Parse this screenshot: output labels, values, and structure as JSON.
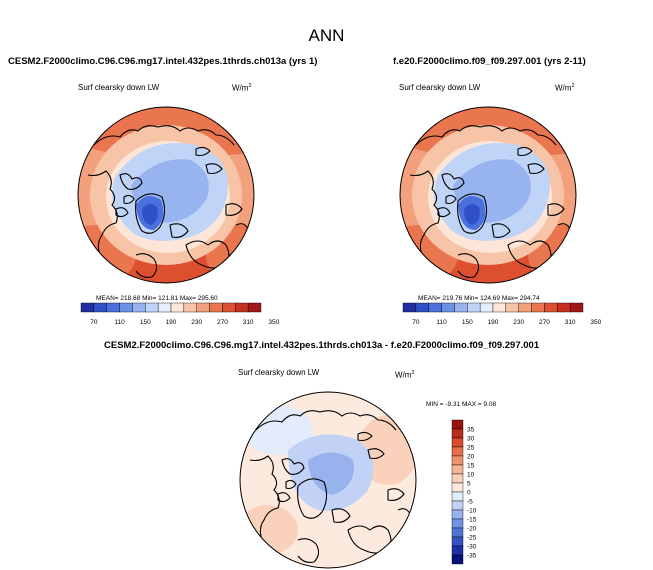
{
  "figure": {
    "title": "ANN"
  },
  "panels": [
    {
      "case_title": "CESM2.F2000climo.C96.C96.mg17.intel.432pes.1thrds.ch013a (yrs 1)",
      "variable": "Surf clearsky down LW",
      "units_base": "W/m",
      "units_exp": "2",
      "stats": "MEAN= 218.68  Min= 121.81  Max= 295.60",
      "projection": "north-polar-stereographic",
      "palette": [
        "#2030a0",
        "#3050c8",
        "#4a70dd",
        "#6c92e8",
        "#98b4f0",
        "#c0d4f7",
        "#e6eefc",
        "#fde6d8",
        "#f8c4a8",
        "#f3a07c",
        "#ea7650",
        "#dc5030",
        "#c63020",
        "#a01818"
      ]
    },
    {
      "case_title": "f.e20.F2000climo.f09_f09.297.001 (yrs 2-11)",
      "variable": "Surf clearsky down LW",
      "units_base": "W/m",
      "units_exp": "2",
      "stats": "MEAN= 219.76  Min= 124.69  Max= 294.74",
      "projection": "north-polar-stereographic",
      "palette": [
        "#2030a0",
        "#3050c8",
        "#4a70dd",
        "#6c92e8",
        "#98b4f0",
        "#c0d4f7",
        "#e6eefc",
        "#fde6d8",
        "#f8c4a8",
        "#f3a07c",
        "#ea7650",
        "#dc5030",
        "#c63020",
        "#a01818"
      ]
    },
    {
      "case_title": "CESM2.F2000climo.C96.C96.mg17.intel.432pes.1thrds.ch013a - f.e20.F2000climo.f09_f09.297.001",
      "variable": "Surf clearsky down LW",
      "units_base": "W/m",
      "units_exp": "2",
      "stats": "MIN =  -9.31 MAX =    9.08",
      "projection": "north-polar-stereographic",
      "palette": [
        "#08107a",
        "#1d2ea6",
        "#3452c4",
        "#4e73d6",
        "#6f93e3",
        "#97b2ed",
        "#c1d2f6",
        "#e2ecfb",
        "#fdeadf",
        "#fad2bc",
        "#f6b596",
        "#f0936d",
        "#e66f49",
        "#d64b2c",
        "#bd2b1c",
        "#981212"
      ]
    }
  ],
  "colorbar_horizontal": {
    "ticks": [
      "70",
      "110",
      "150",
      "190",
      "230",
      "270",
      "310",
      "350"
    ]
  },
  "colorbar_vertical": {
    "ticks": [
      "35",
      "30",
      "25",
      "20",
      "15",
      "10",
      "5",
      "0",
      "-5",
      "-10",
      "-15",
      "-20",
      "-25",
      "-30",
      "-35"
    ]
  }
}
